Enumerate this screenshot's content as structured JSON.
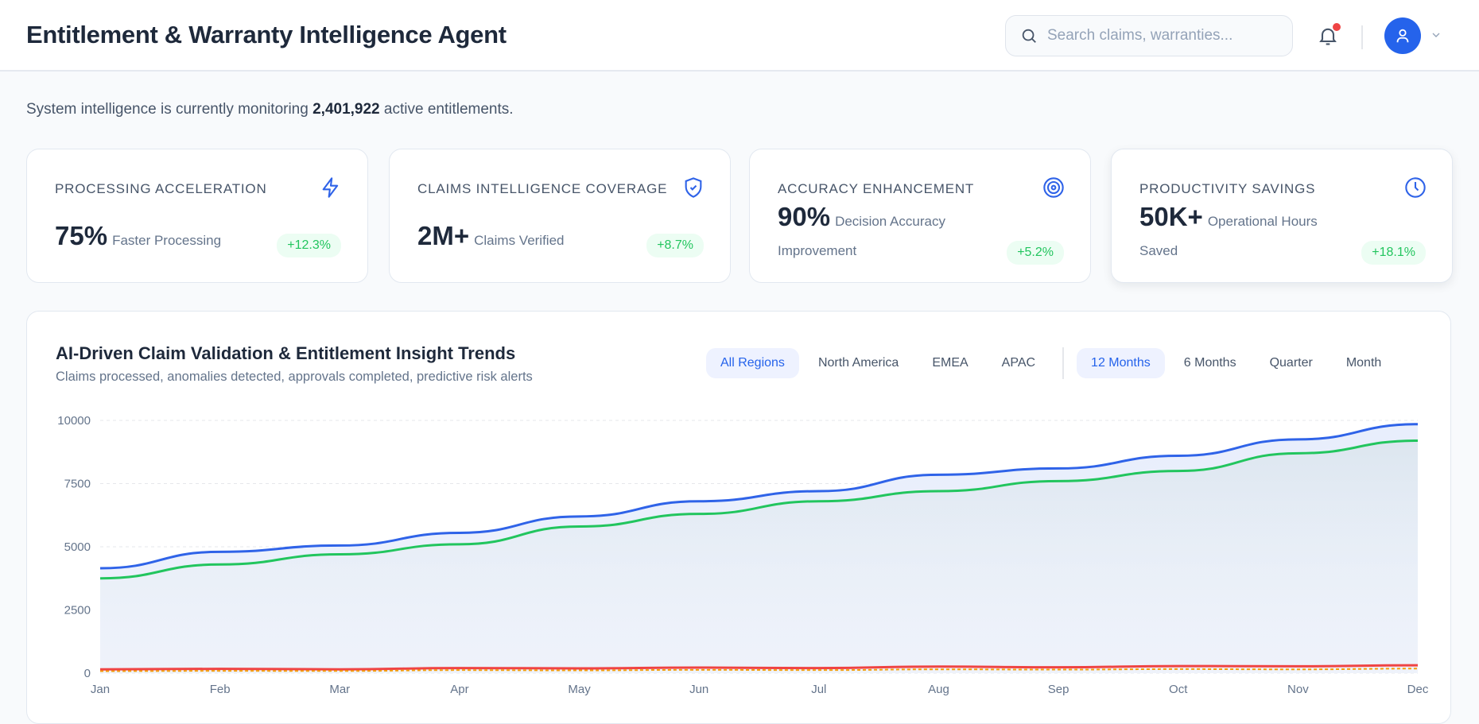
{
  "header": {
    "title": "Entitlement & Warranty Intelligence Agent",
    "search_placeholder": "Search claims, warranties...",
    "notification_dot_color": "#ef4444",
    "avatar_color": "#2563eb"
  },
  "monitor": {
    "prefix": "System intelligence is currently monitoring",
    "count": "2,401,922",
    "suffix": "active entitlements."
  },
  "cards": [
    {
      "label": "PROCESSING ACCELERATION",
      "icon": "lightning-icon",
      "value": "75%",
      "unit": "Faster Processing",
      "unit2": "",
      "delta": "+12.3%"
    },
    {
      "label": "CLAIMS INTELLIGENCE COVERAGE",
      "icon": "shield-check-icon",
      "value": "2M+",
      "unit": "Claims Verified",
      "unit2": "",
      "delta": "+8.7%"
    },
    {
      "label": "ACCURACY ENHANCEMENT",
      "icon": "target-icon",
      "value": "90%",
      "unit": "Decision Accuracy",
      "unit2": "Improvement",
      "delta": "+5.2%"
    },
    {
      "label": "PRODUCTIVITY SAVINGS",
      "icon": "clock-icon",
      "value": "50K+",
      "unit": "Operational Hours",
      "unit2": "Saved",
      "delta": "+18.1%"
    }
  ],
  "chart": {
    "title": "AI-Driven Claim Validation & Entitlement Insight Trends",
    "subtitle": "Claims processed, anomalies detected, approvals completed, predictive risk alerts",
    "regions": [
      "All Regions",
      "North America",
      "EMEA",
      "APAC"
    ],
    "active_region": "All Regions",
    "periods": [
      "12 Months",
      "6 Months",
      "Quarter",
      "Month"
    ],
    "active_period": "12 Months"
  },
  "chart_data": {
    "type": "area",
    "categories": [
      "Jan",
      "Feb",
      "Mar",
      "Apr",
      "May",
      "Jun",
      "Jul",
      "Aug",
      "Sep",
      "Oct",
      "Nov",
      "Dec"
    ],
    "ylim": [
      0,
      10000
    ],
    "yticks": [
      0,
      2500,
      5000,
      7500,
      10000
    ],
    "grid": true,
    "series": [
      {
        "color": "#2f63e8",
        "values": [
          4150,
          4800,
          5050,
          5550,
          6200,
          6800,
          7200,
          7850,
          8100,
          8600,
          9250,
          9850
        ]
      },
      {
        "color": "#22c55e",
        "values": [
          3750,
          4300,
          4700,
          5100,
          5800,
          6300,
          6800,
          7200,
          7600,
          8000,
          8700,
          9200
        ]
      },
      {
        "color": "#ef4444",
        "values": [
          150,
          170,
          150,
          200,
          190,
          220,
          200,
          260,
          230,
          280,
          270,
          310
        ]
      },
      {
        "color": "#f59e0b",
        "dashed": true,
        "values": [
          80,
          90,
          85,
          120,
          110,
          130,
          120,
          150,
          140,
          160,
          150,
          180
        ]
      }
    ]
  }
}
